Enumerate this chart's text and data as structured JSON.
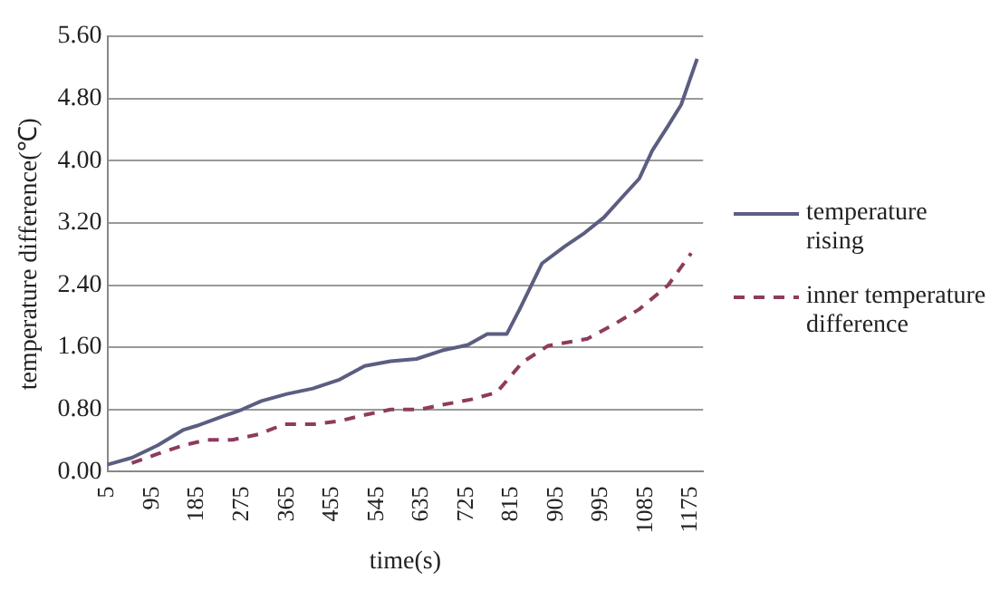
{
  "chart_data": {
    "type": "line",
    "xlabel": "time(s)",
    "ylabel": "temperature difference(℃)",
    "xlim": [
      5,
      1200
    ],
    "xticks": [
      5,
      95,
      185,
      275,
      365,
      455,
      545,
      635,
      725,
      815,
      905,
      995,
      1085,
      1175
    ],
    "ylim": [
      0,
      5.6
    ],
    "yticks": [
      {
        "value": 0,
        "label": "0.00"
      },
      {
        "value": 0.8,
        "label": "0.80"
      },
      {
        "value": 1.6,
        "label": "1.60"
      },
      {
        "value": 2.4,
        "label": "2.40"
      },
      {
        "value": 3.2,
        "label": "3.20"
      },
      {
        "value": 4,
        "label": "4.00"
      },
      {
        "value": 4.8,
        "label": "4.80"
      },
      {
        "value": 5.6,
        "label": "5.60"
      }
    ],
    "grid": "y",
    "legend": "right",
    "marker": "none",
    "series": [
      {
        "name": "temperature rising",
        "color": "#5b5e80",
        "line_style": "solid",
        "x": [
          5,
          54,
          106,
          158,
          184,
          236,
          275,
          314,
          365,
          417,
          469,
          521,
          573,
          625,
          677,
          728,
          767,
          806,
          832,
          877,
          923,
          962,
          1001,
          1039,
          1072,
          1098,
          1130,
          1156,
          1188
        ],
        "values": [
          0.09,
          0.18,
          0.34,
          0.54,
          0.59,
          0.71,
          0.8,
          0.91,
          1,
          1.07,
          1.18,
          1.36,
          1.42,
          1.45,
          1.56,
          1.63,
          1.77,
          1.77,
          2.09,
          2.68,
          2.9,
          3.07,
          3.27,
          3.54,
          3.77,
          4.13,
          4.45,
          4.72,
          5.31
        ]
      },
      {
        "name": "inner temperature difference",
        "color": "#8e3b5e",
        "line_style": "dashed",
        "x": [
          54,
          106,
          158,
          204,
          256,
          308,
          359,
          418,
          469,
          521,
          573,
          631,
          677,
          735,
          786,
          838,
          889,
          968,
          1020,
          1072,
          1130,
          1176
        ],
        "values": [
          0.11,
          0.23,
          0.34,
          0.41,
          0.41,
          0.48,
          0.61,
          0.61,
          0.65,
          0.73,
          0.8,
          0.8,
          0.86,
          0.93,
          1.02,
          1.41,
          1.62,
          1.71,
          1.89,
          2.09,
          2.4,
          2.81
        ]
      }
    ]
  }
}
